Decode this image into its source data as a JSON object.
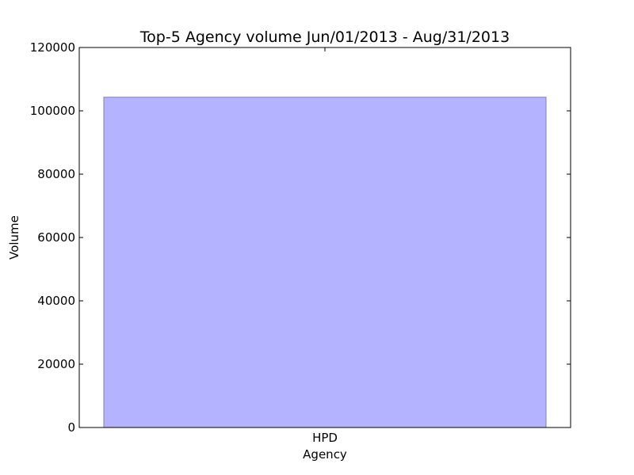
{
  "chart_data": {
    "type": "bar",
    "title": "Top-5 Agency volume Jun/01/2013 - Aug/31/2013",
    "xlabel": "Agency",
    "ylabel": "Volume",
    "categories": [
      "HPD"
    ],
    "values": [
      104300
    ],
    "ylim": [
      0,
      120000
    ],
    "yticks": [
      0,
      20000,
      40000,
      60000,
      80000,
      100000,
      120000
    ],
    "ytick_labels": [
      "0",
      "20000",
      "40000",
      "60000",
      "80000",
      "100000",
      "120000"
    ],
    "grid": false,
    "legend": "none",
    "colors": {
      "bar_fill": "#b3b3ff",
      "bar_edge": "#8080b3",
      "axes": "#000000",
      "background": "#ffffff"
    }
  }
}
